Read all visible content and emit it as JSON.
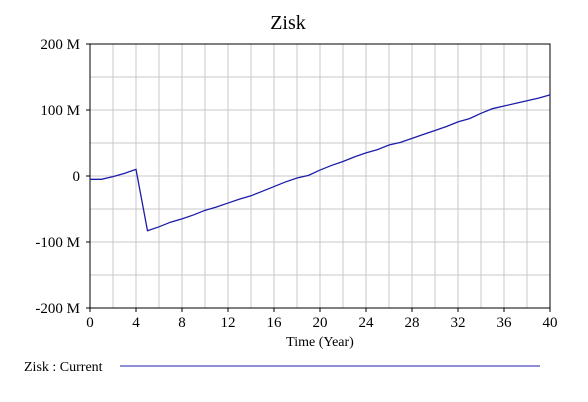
{
  "chart_data": {
    "type": "line",
    "title": "Zisk",
    "xlabel": "Time (Year)",
    "ylabel": "",
    "xlim": [
      0,
      40
    ],
    "ylim": [
      -200000000,
      200000000
    ],
    "x_ticks": [
      0,
      4,
      8,
      12,
      16,
      20,
      24,
      28,
      32,
      36,
      40
    ],
    "x_tick_labels": [
      "0",
      "4",
      "8",
      "12",
      "16",
      "20",
      "24",
      "28",
      "32",
      "36",
      "40"
    ],
    "y_ticks": [
      200000000,
      100000000,
      0,
      -100000000,
      -200000000
    ],
    "y_tick_labels": [
      "200 M",
      "100 M",
      "0",
      "-100 M",
      "-200 M"
    ],
    "grid": true,
    "legend_placement": "bottom",
    "series": [
      {
        "name": "Zisk : Current",
        "color": "#1c1caa",
        "x": [
          0,
          1,
          2,
          3,
          4,
          5,
          6,
          7,
          8,
          9,
          10,
          11,
          12,
          13,
          14,
          15,
          16,
          17,
          18,
          19,
          20,
          21,
          22,
          23,
          24,
          25,
          26,
          27,
          28,
          29,
          30,
          31,
          32,
          33,
          34,
          35,
          36,
          37,
          38,
          39,
          40
        ],
        "values": [
          -5000000,
          -5000000,
          -1000000,
          4000000,
          10000000,
          -83000000,
          -77000000,
          -70000000,
          -65000000,
          -59000000,
          -52000000,
          -47000000,
          -41000000,
          -35000000,
          -30000000,
          -23000000,
          -16000000,
          -9000000,
          -3000000,
          1000000,
          9000000,
          16000000,
          22000000,
          29000000,
          35000000,
          40000000,
          47000000,
          51000000,
          57000000,
          63000000,
          69000000,
          75000000,
          82000000,
          87000000,
          95000000,
          102000000,
          106000000,
          110000000,
          114000000,
          118000000,
          123000000
        ]
      }
    ]
  },
  "legend": {
    "label": "Zisk : Current"
  }
}
